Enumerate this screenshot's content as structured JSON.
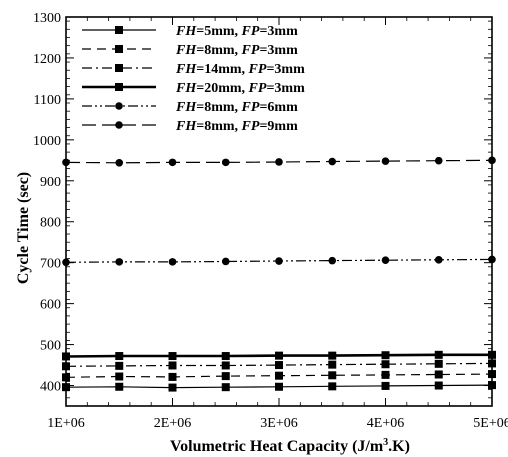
{
  "chart_data": {
    "type": "line",
    "title": "",
    "xlabel": {
      "main": "Volumetric Heat Capacity (J/m",
      "sup": "3",
      "tail": ".K)"
    },
    "ylabel": "Cycle Time (sec)",
    "x": [
      1000000,
      1500000,
      2000000,
      2500000,
      3000000,
      3500000,
      4000000,
      4500000,
      5000000
    ],
    "xlim": [
      1000000,
      5000000
    ],
    "ylim": [
      350,
      1300
    ],
    "x_ticks": [
      1000000,
      2000000,
      3000000,
      4000000,
      5000000
    ],
    "x_tick_labels": [
      "1E+06",
      "2E+06",
      "3E+06",
      "4E+06",
      "5E+06"
    ],
    "y_ticks": [
      400,
      500,
      600,
      700,
      800,
      900,
      1000,
      1100,
      1200,
      1300
    ],
    "y_tick_labels": [
      "400",
      "500",
      "600",
      "700",
      "800",
      "900",
      "1000",
      "1100",
      "1200",
      "1300"
    ],
    "grid": false,
    "legend_position": "top-left",
    "series": [
      {
        "legend": [
          {
            "t": "FH",
            "i": true
          },
          {
            "t": "=5mm, ",
            "i": false
          },
          {
            "t": "FP",
            "i": true
          },
          {
            "t": "=3mm",
            "i": false
          }
        ],
        "line_style": "solid",
        "marker": "square",
        "line_width": 1.2,
        "values": [
          396,
          397,
          395,
          396,
          397,
          398,
          399,
          400,
          401
        ]
      },
      {
        "legend": [
          {
            "t": "FH",
            "i": true
          },
          {
            "t": "=8mm, ",
            "i": false
          },
          {
            "t": "FP",
            "i": true
          },
          {
            "t": "=3mm",
            "i": false
          }
        ],
        "line_style": "dash",
        "marker": "square",
        "line_width": 1.2,
        "values": [
          420,
          422,
          421,
          423,
          424,
          425,
          426,
          427,
          428
        ]
      },
      {
        "legend": [
          {
            "t": "FH",
            "i": true
          },
          {
            "t": "=14mm, ",
            "i": false
          },
          {
            "t": "FP",
            "i": true
          },
          {
            "t": "=3mm",
            "i": false
          }
        ],
        "line_style": "dashdot",
        "marker": "square",
        "line_width": 1.2,
        "values": [
          447,
          448,
          449,
          449,
          450,
          451,
          452,
          453,
          454
        ]
      },
      {
        "legend": [
          {
            "t": "FH",
            "i": true
          },
          {
            "t": "=20mm, ",
            "i": false
          },
          {
            "t": "FP",
            "i": true
          },
          {
            "t": "=3mm",
            "i": false
          }
        ],
        "line_style": "solid",
        "marker": "square",
        "line_width": 2.6,
        "values": [
          471,
          472,
          472,
          472,
          473,
          473,
          474,
          475,
          475
        ]
      },
      {
        "legend": [
          {
            "t": "FH",
            "i": true
          },
          {
            "t": "=8mm, ",
            "i": false
          },
          {
            "t": "FP",
            "i": true
          },
          {
            "t": "=6mm",
            "i": false
          }
        ],
        "line_style": "dashdotdot",
        "marker": "circle",
        "line_width": 1.2,
        "values": [
          701,
          702,
          702,
          703,
          704,
          705,
          706,
          707,
          708
        ]
      },
      {
        "legend": [
          {
            "t": "FH",
            "i": true
          },
          {
            "t": "=8mm, ",
            "i": false
          },
          {
            "t": "FP",
            "i": true
          },
          {
            "t": "=9mm",
            "i": false
          }
        ],
        "line_style": "longdash",
        "marker": "circle",
        "line_width": 1.2,
        "values": [
          945,
          944,
          945,
          945,
          946,
          947,
          948,
          949,
          950
        ]
      }
    ]
  }
}
